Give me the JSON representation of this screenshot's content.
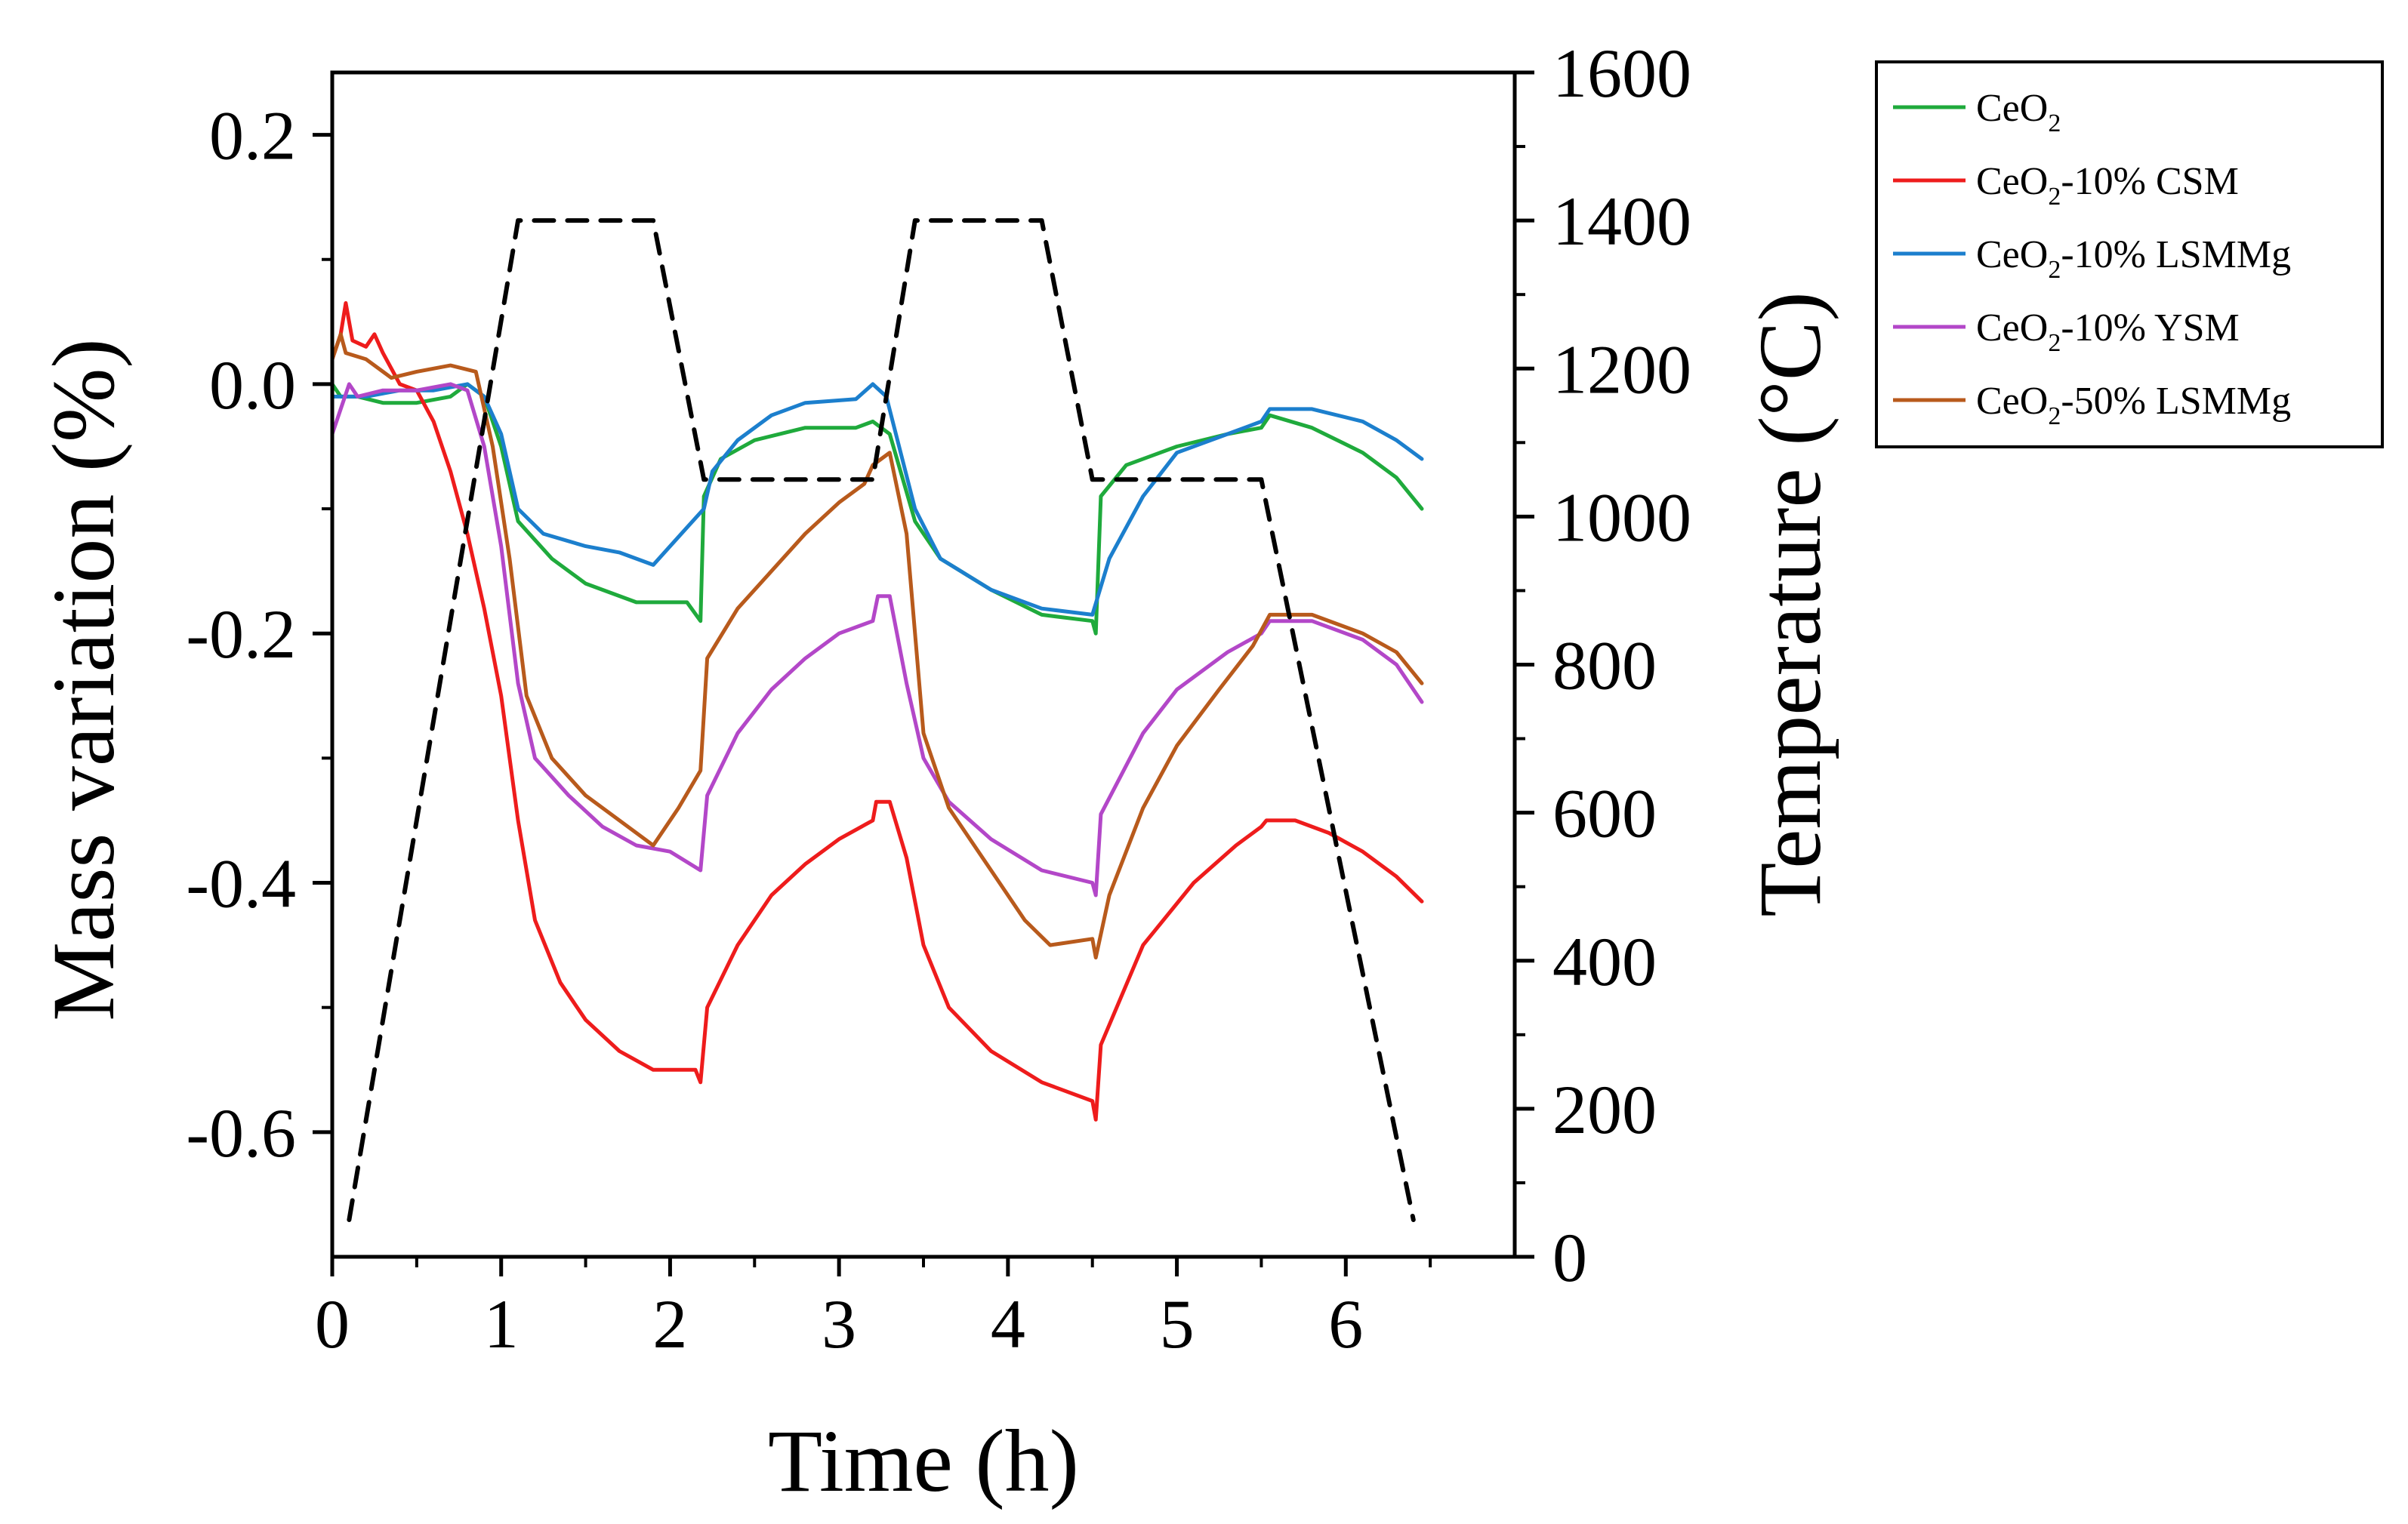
{
  "chart_data": {
    "type": "line",
    "xlabel": "Time (h)",
    "ylabel": "Mass variation (%)",
    "y2label": "Temperature (°C)",
    "xlim": [
      0,
      7
    ],
    "ylim": [
      -0.7,
      0.25
    ],
    "y2lim": [
      0,
      1600
    ],
    "xticks": [
      "0",
      "1",
      "2",
      "3",
      "4",
      "5",
      "6"
    ],
    "yticks": [
      "0.2",
      "0.0",
      "-0.2",
      "-0.4",
      "-0.6"
    ],
    "y2ticks": [
      "0",
      "200",
      "400",
      "600",
      "800",
      "1000",
      "1200",
      "1400",
      "1600"
    ],
    "legend_position": "outside-top-right",
    "series": [
      {
        "name": "CeO2",
        "name_base": "CeO",
        "name_sub": "2",
        "name_suffix": "",
        "color": "#1faa3c",
        "axis": "left",
        "points": [
          [
            0,
            0.0
          ],
          [
            0.05,
            -0.01
          ],
          [
            0.15,
            -0.01
          ],
          [
            0.3,
            -0.015
          ],
          [
            0.5,
            -0.015
          ],
          [
            0.7,
            -0.01
          ],
          [
            0.8,
            0.0
          ],
          [
            0.9,
            -0.01
          ],
          [
            1.0,
            -0.05
          ],
          [
            1.1,
            -0.11
          ],
          [
            1.3,
            -0.14
          ],
          [
            1.5,
            -0.16
          ],
          [
            1.8,
            -0.175
          ],
          [
            2.1,
            -0.175
          ],
          [
            2.18,
            -0.19
          ],
          [
            2.2,
            -0.09
          ],
          [
            2.3,
            -0.06
          ],
          [
            2.5,
            -0.045
          ],
          [
            2.8,
            -0.035
          ],
          [
            3.1,
            -0.035
          ],
          [
            3.2,
            -0.03
          ],
          [
            3.3,
            -0.04
          ],
          [
            3.45,
            -0.11
          ],
          [
            3.6,
            -0.14
          ],
          [
            3.9,
            -0.165
          ],
          [
            4.2,
            -0.185
          ],
          [
            4.5,
            -0.19
          ],
          [
            4.52,
            -0.2
          ],
          [
            4.55,
            -0.09
          ],
          [
            4.7,
            -0.065
          ],
          [
            5.0,
            -0.05
          ],
          [
            5.3,
            -0.04
          ],
          [
            5.5,
            -0.035
          ],
          [
            5.55,
            -0.025
          ],
          [
            5.8,
            -0.035
          ],
          [
            6.1,
            -0.055
          ],
          [
            6.3,
            -0.075
          ],
          [
            6.45,
            -0.1
          ]
        ]
      },
      {
        "name": "CeO2-10% CSM",
        "name_base": "CeO",
        "name_sub": "2",
        "name_suffix": "-10% CSM",
        "color": "#ee1c1c",
        "axis": "left",
        "points": [
          [
            0,
            0.02
          ],
          [
            0.05,
            0.04
          ],
          [
            0.08,
            0.065
          ],
          [
            0.12,
            0.035
          ],
          [
            0.2,
            0.03
          ],
          [
            0.25,
            0.04
          ],
          [
            0.3,
            0.025
          ],
          [
            0.4,
            0.0
          ],
          [
            0.5,
            -0.005
          ],
          [
            0.6,
            -0.03
          ],
          [
            0.7,
            -0.07
          ],
          [
            0.8,
            -0.12
          ],
          [
            0.9,
            -0.18
          ],
          [
            1.0,
            -0.25
          ],
          [
            1.1,
            -0.35
          ],
          [
            1.2,
            -0.43
          ],
          [
            1.35,
            -0.48
          ],
          [
            1.5,
            -0.51
          ],
          [
            1.7,
            -0.535
          ],
          [
            1.9,
            -0.55
          ],
          [
            2.15,
            -0.55
          ],
          [
            2.18,
            -0.56
          ],
          [
            2.22,
            -0.5
          ],
          [
            2.4,
            -0.45
          ],
          [
            2.6,
            -0.41
          ],
          [
            2.8,
            -0.385
          ],
          [
            3.0,
            -0.365
          ],
          [
            3.2,
            -0.35
          ],
          [
            3.22,
            -0.335
          ],
          [
            3.3,
            -0.335
          ],
          [
            3.4,
            -0.38
          ],
          [
            3.5,
            -0.45
          ],
          [
            3.65,
            -0.5
          ],
          [
            3.9,
            -0.535
          ],
          [
            4.2,
            -0.56
          ],
          [
            4.5,
            -0.575
          ],
          [
            4.52,
            -0.59
          ],
          [
            4.55,
            -0.53
          ],
          [
            4.8,
            -0.45
          ],
          [
            5.1,
            -0.4
          ],
          [
            5.35,
            -0.37
          ],
          [
            5.5,
            -0.355
          ],
          [
            5.53,
            -0.35
          ],
          [
            5.7,
            -0.35
          ],
          [
            5.9,
            -0.36
          ],
          [
            6.1,
            -0.375
          ],
          [
            6.3,
            -0.395
          ],
          [
            6.45,
            -0.415
          ]
        ]
      },
      {
        "name": "CeO2-10% LSMMg",
        "name_base": "CeO",
        "name_sub": "2",
        "name_suffix": "-10% LSMMg",
        "color": "#1c7fcd",
        "axis": "left",
        "points": [
          [
            0,
            -0.01
          ],
          [
            0.05,
            -0.01
          ],
          [
            0.2,
            -0.01
          ],
          [
            0.4,
            -0.005
          ],
          [
            0.6,
            -0.005
          ],
          [
            0.8,
            0.0
          ],
          [
            0.9,
            -0.01
          ],
          [
            1.0,
            -0.04
          ],
          [
            1.1,
            -0.1
          ],
          [
            1.25,
            -0.12
          ],
          [
            1.5,
            -0.13
          ],
          [
            1.7,
            -0.135
          ],
          [
            1.9,
            -0.145
          ],
          [
            2.1,
            -0.115
          ],
          [
            2.2,
            -0.1
          ],
          [
            2.25,
            -0.07
          ],
          [
            2.4,
            -0.045
          ],
          [
            2.6,
            -0.025
          ],
          [
            2.8,
            -0.015
          ],
          [
            3.1,
            -0.012
          ],
          [
            3.2,
            0.0
          ],
          [
            3.28,
            -0.01
          ],
          [
            3.45,
            -0.1
          ],
          [
            3.6,
            -0.14
          ],
          [
            3.9,
            -0.165
          ],
          [
            4.2,
            -0.18
          ],
          [
            4.5,
            -0.185
          ],
          [
            4.6,
            -0.14
          ],
          [
            4.8,
            -0.09
          ],
          [
            5.0,
            -0.055
          ],
          [
            5.3,
            -0.04
          ],
          [
            5.5,
            -0.03
          ],
          [
            5.55,
            -0.02
          ],
          [
            5.8,
            -0.02
          ],
          [
            6.1,
            -0.03
          ],
          [
            6.3,
            -0.045
          ],
          [
            6.45,
            -0.06
          ]
        ]
      },
      {
        "name": "CeO2-10% YSM",
        "name_base": "CeO",
        "name_sub": "2",
        "name_suffix": "-10% YSM",
        "color": "#b347c8",
        "axis": "left",
        "points": [
          [
            0,
            -0.04
          ],
          [
            0.05,
            -0.02
          ],
          [
            0.1,
            0.0
          ],
          [
            0.15,
            -0.01
          ],
          [
            0.3,
            -0.005
          ],
          [
            0.5,
            -0.005
          ],
          [
            0.7,
            0.0
          ],
          [
            0.8,
            -0.005
          ],
          [
            0.9,
            -0.05
          ],
          [
            1.0,
            -0.13
          ],
          [
            1.1,
            -0.24
          ],
          [
            1.2,
            -0.3
          ],
          [
            1.4,
            -0.33
          ],
          [
            1.6,
            -0.355
          ],
          [
            1.8,
            -0.37
          ],
          [
            2.0,
            -0.375
          ],
          [
            2.18,
            -0.39
          ],
          [
            2.22,
            -0.33
          ],
          [
            2.4,
            -0.28
          ],
          [
            2.6,
            -0.245
          ],
          [
            2.8,
            -0.22
          ],
          [
            3.0,
            -0.2
          ],
          [
            3.2,
            -0.19
          ],
          [
            3.23,
            -0.17
          ],
          [
            3.3,
            -0.17
          ],
          [
            3.4,
            -0.24
          ],
          [
            3.5,
            -0.3
          ],
          [
            3.65,
            -0.335
          ],
          [
            3.9,
            -0.365
          ],
          [
            4.2,
            -0.39
          ],
          [
            4.5,
            -0.4
          ],
          [
            4.52,
            -0.41
          ],
          [
            4.55,
            -0.345
          ],
          [
            4.8,
            -0.28
          ],
          [
            5.0,
            -0.245
          ],
          [
            5.3,
            -0.215
          ],
          [
            5.5,
            -0.2
          ],
          [
            5.55,
            -0.19
          ],
          [
            5.8,
            -0.19
          ],
          [
            6.1,
            -0.205
          ],
          [
            6.3,
            -0.225
          ],
          [
            6.45,
            -0.255
          ]
        ]
      },
      {
        "name": "CeO2-50% LSMMg",
        "name_base": "CeO",
        "name_sub": "2",
        "name_suffix": "-50% LSMMg",
        "color": "#b85a1c",
        "axis": "left",
        "points": [
          [
            0,
            0.02
          ],
          [
            0.05,
            0.04
          ],
          [
            0.08,
            0.025
          ],
          [
            0.2,
            0.02
          ],
          [
            0.35,
            0.005
          ],
          [
            0.5,
            0.01
          ],
          [
            0.7,
            0.015
          ],
          [
            0.85,
            0.01
          ],
          [
            0.95,
            -0.05
          ],
          [
            1.05,
            -0.14
          ],
          [
            1.15,
            -0.25
          ],
          [
            1.3,
            -0.3
          ],
          [
            1.5,
            -0.33
          ],
          [
            1.7,
            -0.35
          ],
          [
            1.9,
            -0.37
          ],
          [
            2.05,
            -0.34
          ],
          [
            2.18,
            -0.31
          ],
          [
            2.22,
            -0.22
          ],
          [
            2.4,
            -0.18
          ],
          [
            2.6,
            -0.15
          ],
          [
            2.8,
            -0.12
          ],
          [
            3.0,
            -0.095
          ],
          [
            3.15,
            -0.08
          ],
          [
            3.2,
            -0.065
          ],
          [
            3.3,
            -0.055
          ],
          [
            3.4,
            -0.12
          ],
          [
            3.5,
            -0.28
          ],
          [
            3.65,
            -0.34
          ],
          [
            3.9,
            -0.39
          ],
          [
            4.1,
            -0.43
          ],
          [
            4.25,
            -0.45
          ],
          [
            4.5,
            -0.445
          ],
          [
            4.52,
            -0.46
          ],
          [
            4.6,
            -0.41
          ],
          [
            4.8,
            -0.34
          ],
          [
            5.0,
            -0.29
          ],
          [
            5.25,
            -0.245
          ],
          [
            5.45,
            -0.21
          ],
          [
            5.55,
            -0.185
          ],
          [
            5.8,
            -0.185
          ],
          [
            6.1,
            -0.2
          ],
          [
            6.3,
            -0.215
          ],
          [
            6.45,
            -0.24
          ]
        ]
      },
      {
        "name": "",
        "color": "#000000",
        "axis": "right",
        "style": "dashed",
        "points": [
          [
            0.1,
            50
          ],
          [
            1.1,
            1400
          ],
          [
            1.9,
            1400
          ],
          [
            2.2,
            1050
          ],
          [
            3.2,
            1050
          ],
          [
            3.45,
            1400
          ],
          [
            4.2,
            1400
          ],
          [
            4.5,
            1050
          ],
          [
            5.5,
            1050
          ],
          [
            6.4,
            50
          ]
        ]
      }
    ]
  }
}
